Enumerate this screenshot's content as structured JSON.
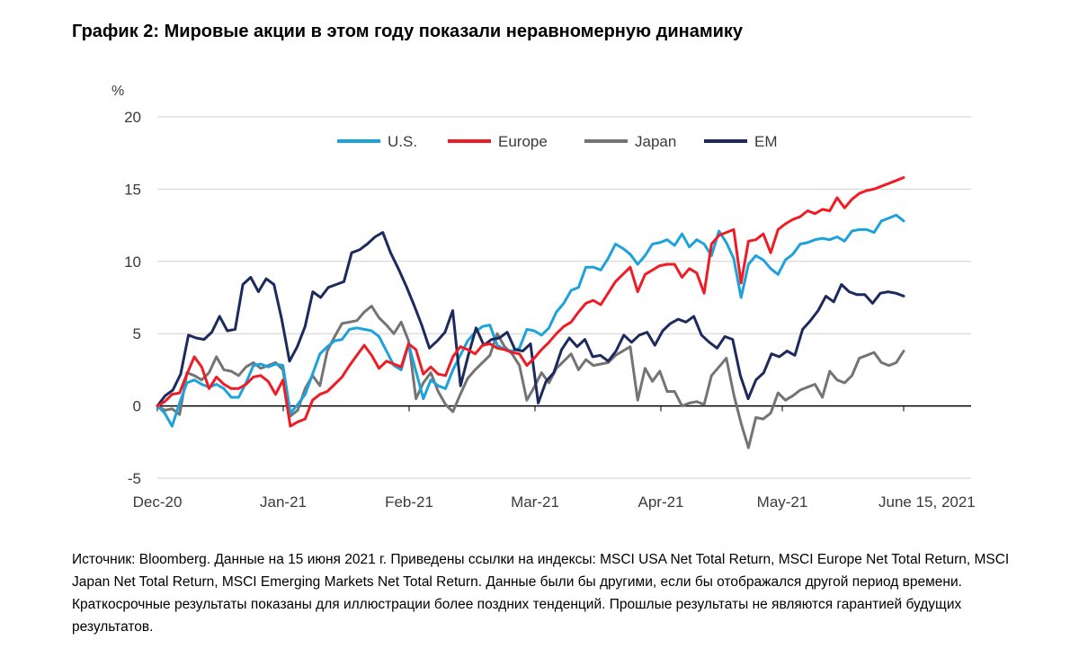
{
  "title": "График 2: Мировые акции в этом году показали неравномерную динамику",
  "source_note": "Источник: Bloomberg. Данные на 15 июня 2021 г. Приведены ссылки на индексы: MSCI USA Net Total Return, MSCI Europe Net Total Return, MSCI Japan Net Total Return, MSCI Emerging Markets Net Total Return. Данные были бы другими, если бы отображался другой период времени. Краткосрочные результаты показаны для иллюстрации более поздних тенденций. Прошлые результаты не являются гарантией будущих результатов.",
  "chart_data": {
    "type": "line",
    "ylabel": "%",
    "ylim": [
      -5,
      20
    ],
    "yticks": [
      20,
      15,
      10,
      5,
      0,
      -5
    ],
    "x_tick_labels": [
      "Dec-20",
      "Jan-21",
      "Feb-21",
      "Mar-21",
      "Apr-21",
      "May-21",
      "June 15, 2021"
    ],
    "grid": "horizontal",
    "legend_position": "top",
    "series": [
      {
        "name": "U.S.",
        "color": "#1ea2dc",
        "values": [
          0,
          -0.5,
          -1.4,
          0.2,
          1.6,
          1.8,
          1.5,
          1.3,
          1.5,
          1.2,
          0.6,
          0.6,
          1.6,
          2.8,
          2.9,
          2.7,
          2.9,
          2.8,
          -0.5,
          0.1,
          0.8,
          2.2,
          3.6,
          4.1,
          4.5,
          4.6,
          5.3,
          5.4,
          5.3,
          5.2,
          4.8,
          3.8,
          2.8,
          2.5,
          4.3,
          2.4,
          0.5,
          1.8,
          1.4,
          1.2,
          2.5,
          3.5,
          4.5,
          5.1,
          5.5,
          5.6,
          4.2,
          3.9,
          3.8,
          4.0,
          5.3,
          5.2,
          4.9,
          5.4,
          6.5,
          7.1,
          8.0,
          8.2,
          9.6,
          9.6,
          9.4,
          10.2,
          11.2,
          10.9,
          10.5,
          9.8,
          10.4,
          11.2,
          11.3,
          11.5,
          11.1,
          11.9,
          11.0,
          11.5,
          11.2,
          10.4,
          12.1,
          11.3,
          10.2,
          7.5,
          9.8,
          10.4,
          10.1,
          9.5,
          9.1,
          10.1,
          10.5,
          11.2,
          11.3,
          11.5,
          11.6,
          11.5,
          11.7,
          11.4,
          12.1,
          12.2,
          12.2,
          12.0,
          12.8,
          13.0,
          13.2,
          12.8
        ]
      },
      {
        "name": "Europe",
        "color": "#ee1c24",
        "values": [
          0,
          0.3,
          0.8,
          0.9,
          2.2,
          3.4,
          2.7,
          1.2,
          2.0,
          1.5,
          1.2,
          1.2,
          1.5,
          2.0,
          2.1,
          1.7,
          0.8,
          1.8,
          -1.4,
          -1.1,
          -0.9,
          0.4,
          0.8,
          1.0,
          1.5,
          2.0,
          2.8,
          3.5,
          4.2,
          3.5,
          2.6,
          3.1,
          2.9,
          2.7,
          4.3,
          3.9,
          2.2,
          2.7,
          2.2,
          2.1,
          3.4,
          4.1,
          3.9,
          3.6,
          4.2,
          4.3,
          4.0,
          3.9,
          3.7,
          3.6,
          2.8,
          3.3,
          3.9,
          4.4,
          5.0,
          5.5,
          5.8,
          6.5,
          7.1,
          7.3,
          7.0,
          7.8,
          8.6,
          9.1,
          9.6,
          7.9,
          9.1,
          9.4,
          9.7,
          9.8,
          9.8,
          8.9,
          9.5,
          9.2,
          7.8,
          11.2,
          11.8,
          12.0,
          12.2,
          8.5,
          11.4,
          11.5,
          11.9,
          10.6,
          12.2,
          12.6,
          12.9,
          13.1,
          13.5,
          13.3,
          13.6,
          13.5,
          14.4,
          13.7,
          14.3,
          14.7,
          14.9,
          15.0,
          15.2,
          15.4,
          15.6,
          15.8
        ]
      },
      {
        "name": "Japan",
        "color": "#747474",
        "values": [
          0,
          -0.3,
          -0.2,
          -0.6,
          2.3,
          2.1,
          1.8,
          2.3,
          3.4,
          2.5,
          2.4,
          2.1,
          2.7,
          3.0,
          2.6,
          2.8,
          3.0,
          2.5,
          -0.7,
          -0.3,
          1.2,
          2.1,
          1.4,
          3.8,
          4.8,
          5.7,
          5.8,
          5.9,
          6.5,
          6.9,
          6.1,
          5.6,
          5.0,
          5.8,
          4.5,
          0.5,
          1.6,
          2.3,
          1.0,
          0.1,
          -0.4,
          0.8,
          1.9,
          2.5,
          3.0,
          3.5,
          5.0,
          4.1,
          3.6,
          2.8,
          0.4,
          1.3,
          2.3,
          1.6,
          2.6,
          3.1,
          3.6,
          2.5,
          3.2,
          2.8,
          2.9,
          3.0,
          3.5,
          3.8,
          4.1,
          0.4,
          2.6,
          1.7,
          2.4,
          1.0,
          1.0,
          0.0,
          0.2,
          0.3,
          0.1,
          2.1,
          2.7,
          3.3,
          0.8,
          -1.2,
          -2.9,
          -0.8,
          -0.9,
          -0.5,
          0.9,
          0.4,
          0.7,
          1.1,
          1.3,
          1.5,
          0.6,
          2.4,
          1.8,
          1.6,
          2.1,
          3.3,
          3.5,
          3.7,
          3.0,
          2.8,
          3.0,
          3.8
        ]
      },
      {
        "name": "EM",
        "color": "#1c2a5e",
        "values": [
          0,
          0.7,
          1.1,
          2.2,
          4.9,
          4.7,
          4.6,
          5.1,
          6.2,
          5.2,
          5.3,
          8.4,
          8.9,
          7.9,
          8.8,
          8.4,
          6.0,
          3.1,
          4.1,
          5.5,
          7.9,
          7.5,
          8.2,
          8.4,
          8.6,
          10.6,
          10.8,
          11.2,
          11.7,
          12.0,
          10.6,
          9.5,
          8.3,
          7.0,
          5.6,
          4.0,
          4.5,
          5.1,
          6.6,
          1.4,
          3.5,
          5.4,
          4.2,
          4.6,
          4.7,
          5.1,
          3.9,
          3.8,
          4.3,
          0.2,
          1.7,
          2.3,
          3.9,
          4.7,
          4.1,
          4.6,
          3.4,
          3.5,
          3.1,
          3.8,
          4.9,
          4.4,
          4.9,
          5.1,
          4.2,
          5.2,
          5.7,
          6.0,
          5.8,
          6.2,
          4.9,
          4.4,
          4.0,
          4.8,
          4.6,
          2.1,
          0.5,
          1.8,
          2.3,
          3.6,
          3.4,
          3.8,
          3.5,
          5.3,
          5.9,
          6.6,
          7.6,
          7.2,
          8.4,
          7.9,
          7.7,
          7.7,
          7.1,
          7.8,
          7.9,
          7.8,
          7.6
        ]
      }
    ]
  }
}
